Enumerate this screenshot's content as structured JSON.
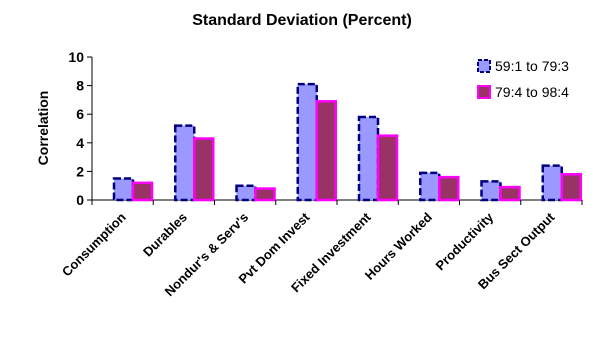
{
  "chart_data": {
    "type": "bar",
    "title": "Standard Deviation (Percent)",
    "xlabel": "",
    "ylabel": "Correlation",
    "ylim": [
      0,
      10
    ],
    "yticks": [
      0,
      2,
      4,
      6,
      8,
      10
    ],
    "grid": false,
    "legend_position": "top-right",
    "categories": [
      "Consumption",
      "Durables",
      "Nondur's & Serv's",
      "Pvt Dom Invest",
      "Fixed Investment",
      "Hours Worked",
      "Productivity",
      "Bus Sect Output"
    ],
    "series": [
      {
        "name": "59:1 to 79:3",
        "values": [
          1.5,
          5.2,
          1.0,
          8.1,
          5.8,
          1.9,
          1.3,
          2.4
        ],
        "color": "#9999ff",
        "border": "#000080"
      },
      {
        "name": "79:4 to 98:4",
        "values": [
          1.2,
          4.3,
          0.8,
          6.9,
          4.5,
          1.6,
          0.9,
          1.8
        ],
        "color": "#993366",
        "border": "#ff00ff"
      }
    ]
  }
}
